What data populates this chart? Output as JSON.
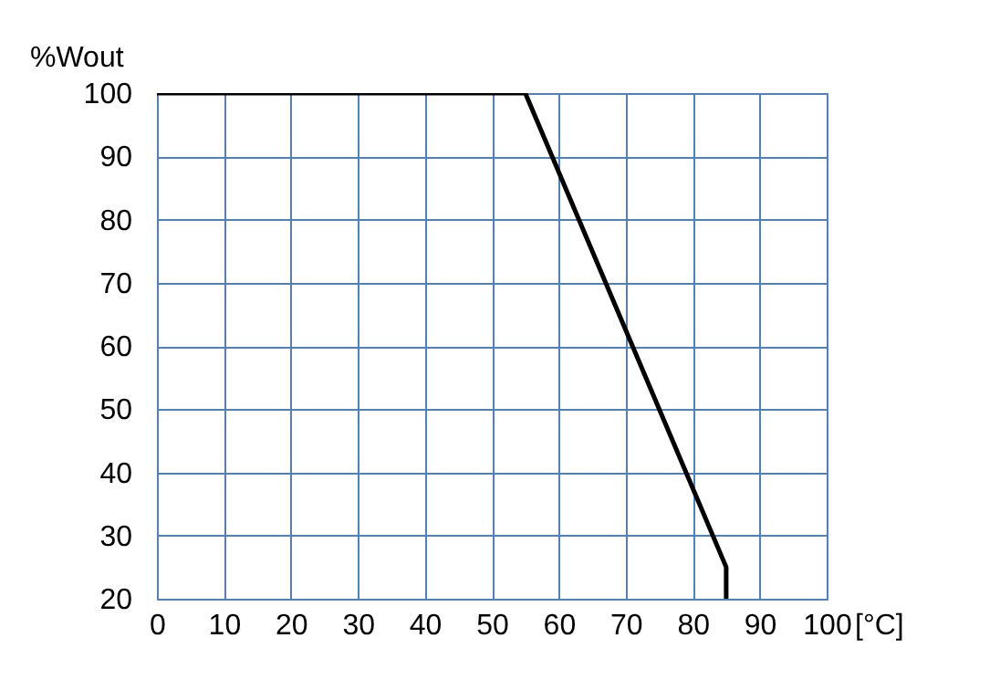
{
  "chart_data": {
    "type": "line",
    "xlabel": "[°C]",
    "ylabel": "%Wout",
    "series": [
      {
        "color": "#000000",
        "x": [
          0,
          55,
          85,
          85
        ],
        "values": [
          100,
          100,
          25,
          20
        ]
      }
    ],
    "xlim": [
      0,
      100
    ],
    "xticks": [
      0,
      10,
      20,
      30,
      40,
      50,
      60,
      70,
      80,
      90,
      100
    ],
    "ylim": [
      20,
      100
    ],
    "yticks": [
      20,
      30,
      40,
      50,
      60,
      70,
      80,
      90,
      100
    ],
    "grid": true,
    "marker": "none",
    "line_style": "solid"
  }
}
